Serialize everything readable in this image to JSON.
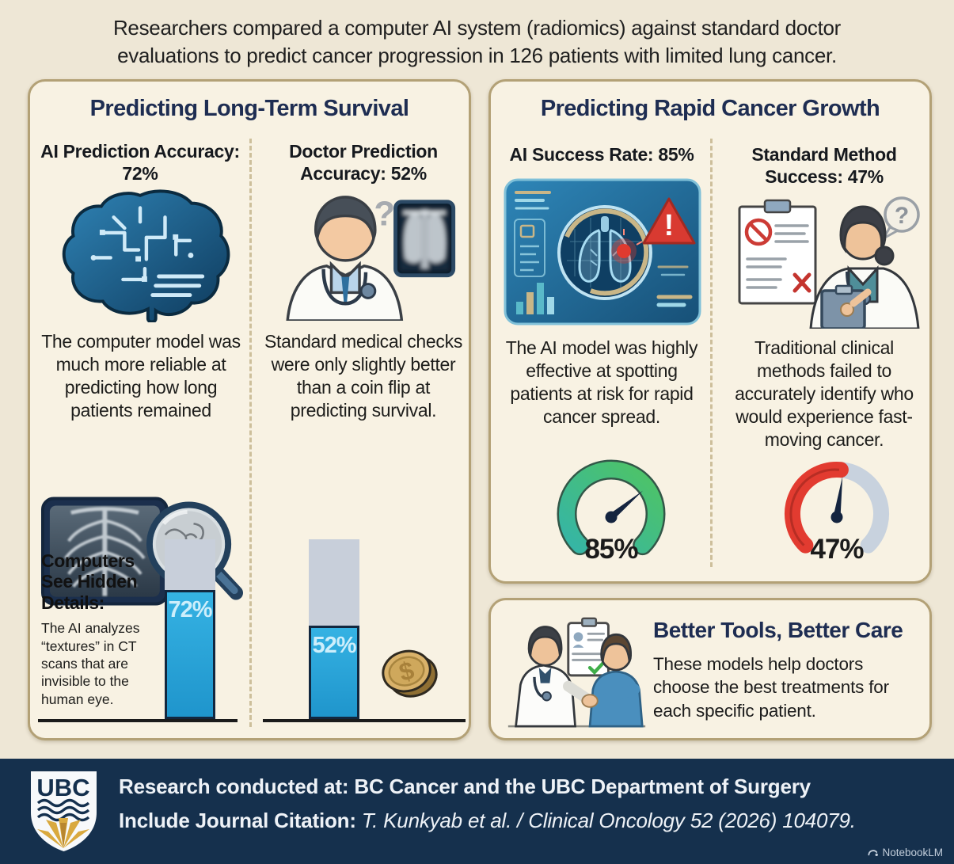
{
  "header": {
    "text": "Researchers compared a computer AI system (radiomics) against standard doctor evaluations to predict cancer progression in 126 patients with limited lung cancer."
  },
  "survival_panel": {
    "title": "Predicting Long-Term Survival",
    "ai_heading": "AI Prediction Accuracy: 72%",
    "ai_description": "The computer model was much more reliable at predicting how long patients remained",
    "ai_bar": {
      "label": "72%",
      "value": 72
    },
    "doctor_heading": "Doctor Prediction Accuracy: 52%",
    "doctor_description": "Standard medical checks were only slightly better than a coin flip at predicting survival.",
    "doctor_bar": {
      "label": "52%",
      "value": 52
    },
    "callout_heading": "Computers See Hidden Details:",
    "callout_body": "The AI analyzes “textures” in CT scans that are invisible to the human eye."
  },
  "growth_panel": {
    "title": "Predicting Rapid Cancer Growth",
    "ai_heading": "AI Success Rate: 85%",
    "ai_description": "The AI model was highly effective at spotting patients at risk for rapid cancer spread.",
    "ai_gauge": {
      "label": "85%",
      "value": 85
    },
    "standard_heading": "Standard Method Success: 47%",
    "standard_description": "Traditional clinical methods failed to accurately identify who would experience fast-moving cancer.",
    "standard_gauge": {
      "label": "47%",
      "value": 47
    }
  },
  "care_panel": {
    "title": "Better Tools, Better Care",
    "body": "These models help doctors choose the best treatments for each specific patient."
  },
  "footer": {
    "ubc_logo_text": "UBC",
    "conducted_label": "Research conducted at:",
    "conducted_text": " BC Cancer and the UBC Department of Surgery",
    "citation_label": "Include Journal Citation:",
    "citation_text": " T. Kunkyab et al. / Clinical Oncology 52 (2026) 104079.",
    "watermark": "NotebookLM"
  },
  "glyphs": {
    "question_mark": "?",
    "exclamation_mark": "!",
    "dollar_sign": "$"
  },
  "colors": {
    "page_bg": "#eee7d6",
    "panel_bg": "#f8f2e3",
    "panel_border": "#b3a176",
    "navy_heading": "#1e2d52",
    "footer_bg": "#15304d",
    "bar_blue": "#2aa6d9",
    "bar_track_gray": "#c8cfda",
    "gauge_teal": "#35b5a6",
    "gauge_green": "#4fc464",
    "gauge_red": "#e23b30",
    "gauge_gray": "#c8d2de"
  }
}
